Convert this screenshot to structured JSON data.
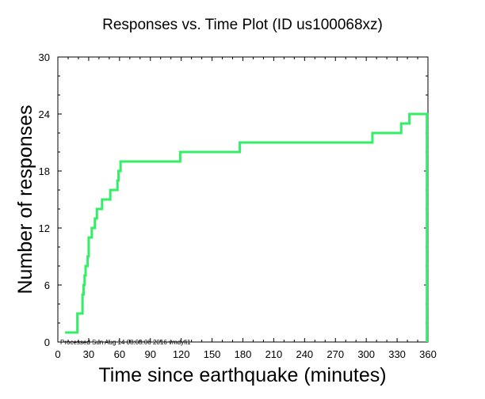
{
  "chart_data": {
    "type": "line",
    "title": "Responses vs. Time Plot (ID us100068xz)",
    "xlabel": "Time since earthquake (minutes)",
    "ylabel": "Number of responses",
    "xlim": [
      0,
      360
    ],
    "ylim": [
      0,
      30
    ],
    "xticks": [
      0,
      30,
      60,
      90,
      120,
      150,
      180,
      210,
      240,
      270,
      300,
      330,
      360
    ],
    "yticks": [
      0,
      6,
      12,
      18,
      24,
      30
    ],
    "annotation": "Processed Sun Aug 14 08:08:06 2016 vmdyfi1",
    "line_color": "#33ee66",
    "series": [
      {
        "name": "responses",
        "step": true,
        "x": [
          7,
          16,
          19,
          24,
          25,
          26,
          27,
          29,
          30,
          33,
          36,
          38,
          43,
          51,
          58,
          59,
          61,
          119,
          177,
          306,
          334,
          342,
          359,
          359
        ],
        "y": [
          1,
          1,
          3,
          5,
          6,
          7,
          8,
          9,
          11,
          12,
          13,
          14,
          15,
          16,
          17,
          18,
          19,
          20,
          21,
          22,
          23,
          24,
          24,
          0
        ]
      }
    ]
  }
}
